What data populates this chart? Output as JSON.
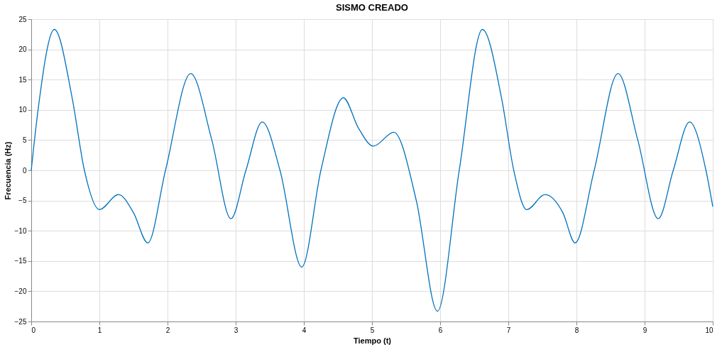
{
  "chart_data": {
    "type": "line",
    "title": "SISMO CREADO",
    "xlabel": "Tiempo (t)",
    "ylabel": "Frecuencia (Hz)",
    "series": [
      {
        "color": "#0072bd",
        "x": [
          0,
          0.1,
          0.34,
          0.6,
          0.78,
          1.0,
          1.28,
          1.5,
          1.71,
          1.97,
          2.34,
          2.65,
          2.93,
          3.15,
          3.39,
          3.65,
          3.97,
          4.25,
          4.58,
          4.8,
          5.02,
          5.32,
          5.65,
          5.96,
          6.28,
          6.62,
          6.9,
          7.08,
          7.27,
          7.54,
          7.8,
          7.98,
          8.26,
          8.61,
          8.9,
          9.2,
          9.42,
          9.66,
          9.9,
          10
        ],
        "values": [
          0,
          10,
          23.3,
          12,
          0,
          -6.5,
          -4,
          -7,
          -12,
          0,
          16,
          5,
          -8,
          0,
          8,
          0,
          -16,
          0,
          12,
          7,
          4,
          6.3,
          -5,
          -23.3,
          0,
          23.3,
          12,
          0,
          -6.5,
          -4,
          -7,
          -12,
          0,
          16,
          5,
          -8,
          0,
          8,
          0,
          -6
        ]
      }
    ],
    "xlim": [
      0,
      10
    ],
    "xticks": [
      0,
      1,
      2,
      3,
      4,
      5,
      6,
      7,
      8,
      9,
      10
    ],
    "ylim": [
      -25,
      25
    ],
    "yticks": [
      -25,
      -20,
      -15,
      -10,
      -5,
      0,
      5,
      10,
      15,
      20,
      25
    ],
    "grid": true,
    "marker": "none",
    "line_style": "solid"
  }
}
